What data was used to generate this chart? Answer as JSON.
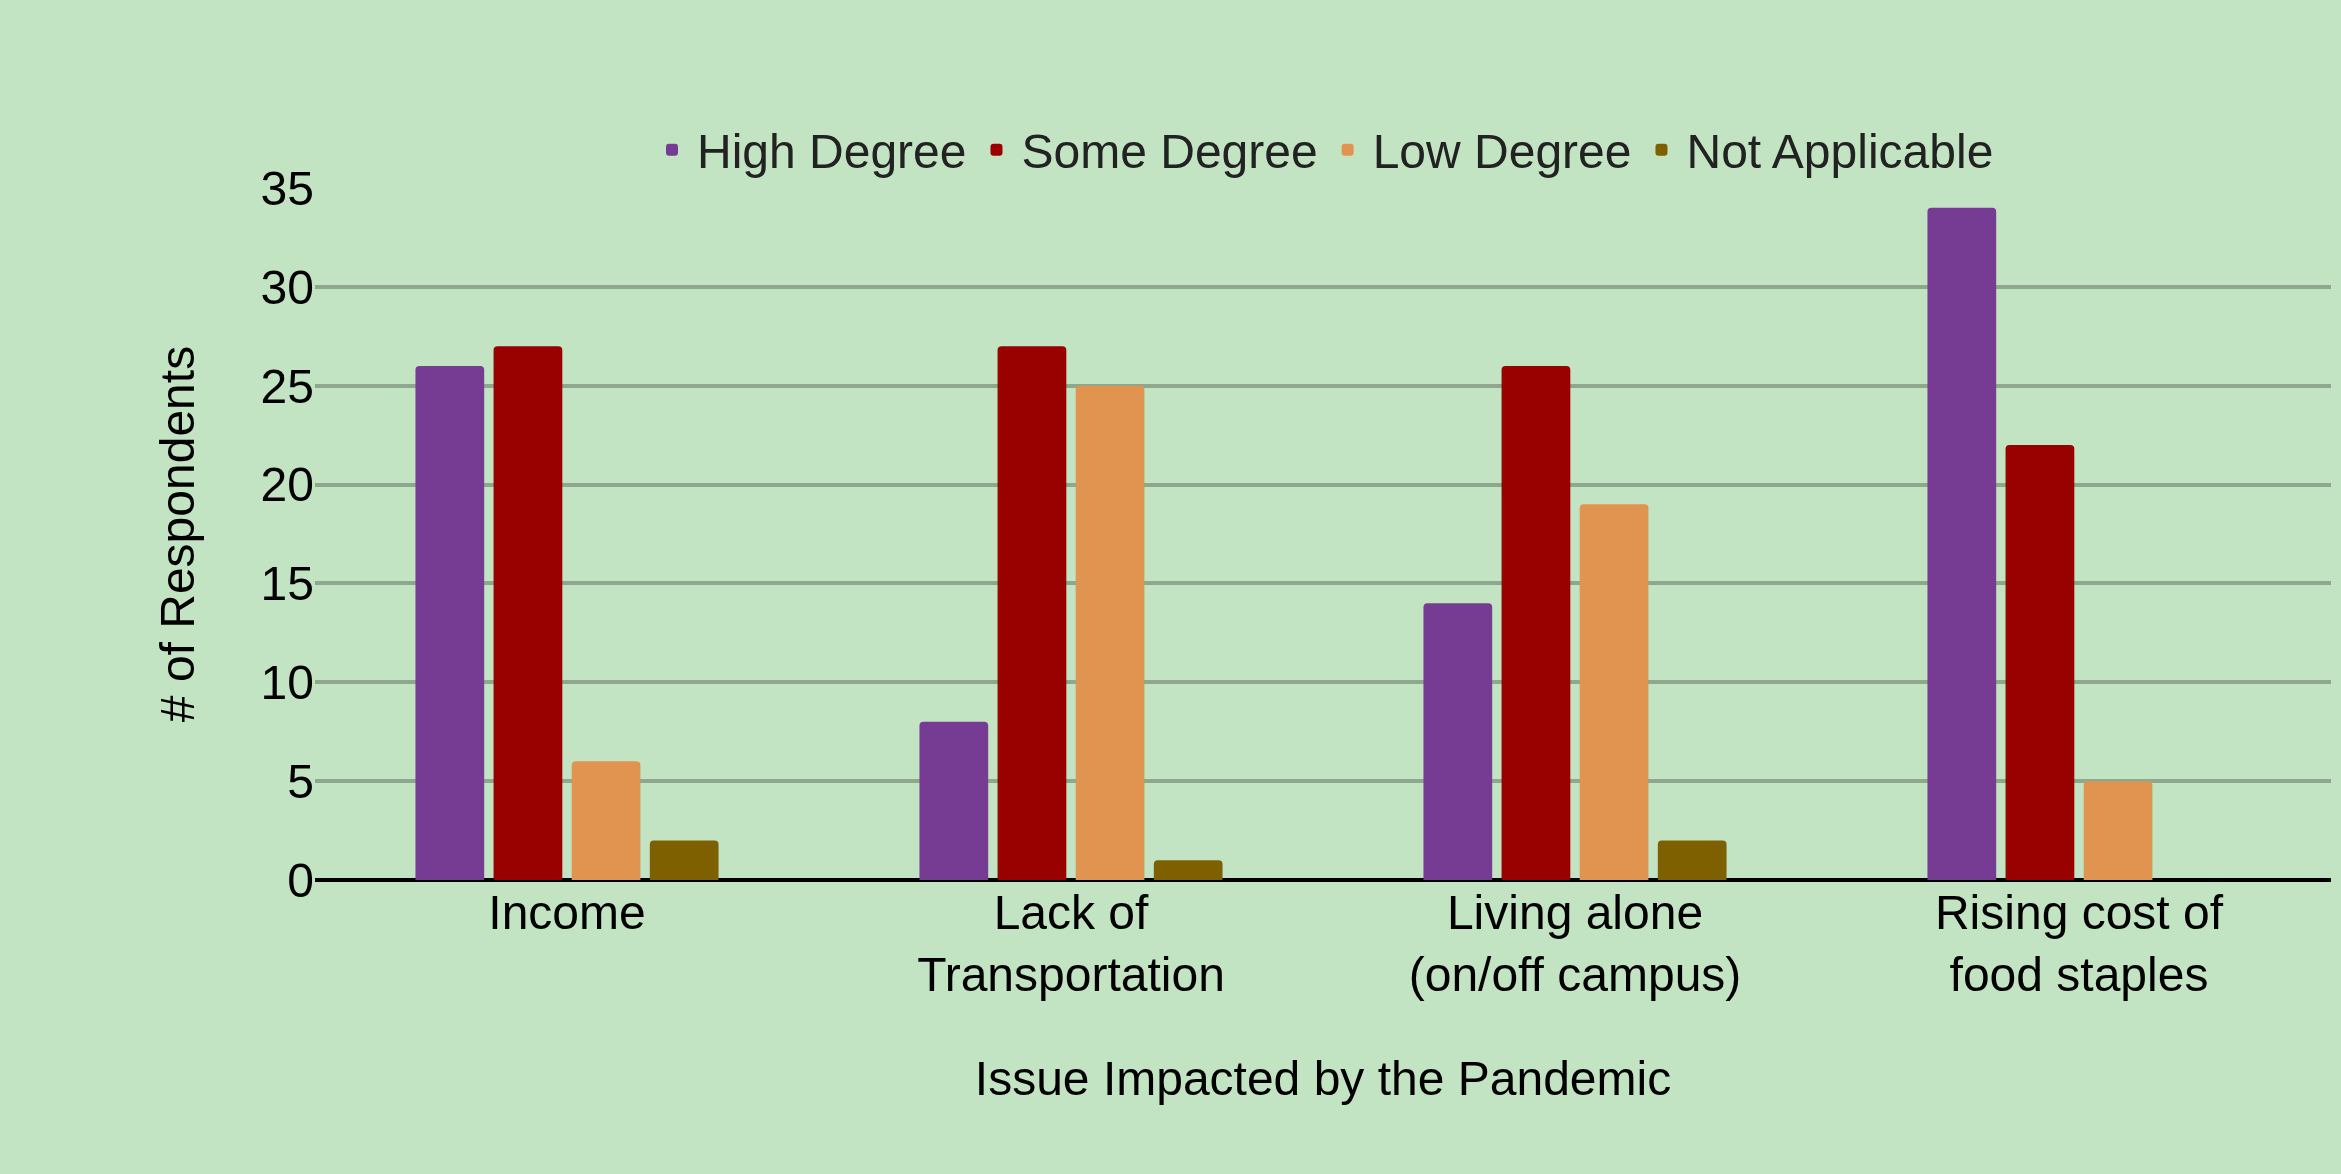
{
  "chart_data": {
    "type": "bar",
    "xlabel": "Issue Impacted by the Pandemic",
    "ylabel": "# of Respondents",
    "categories": [
      "Income",
      "Lack of\nTransportation",
      "Living alone\n(on/off campus)",
      "Rising cost of\nfood staples"
    ],
    "series": [
      {
        "name": "High Degree",
        "color": "#763c93",
        "values": [
          26,
          8,
          14,
          34
        ]
      },
      {
        "name": "Some Degree",
        "color": "#990000",
        "values": [
          27,
          27,
          26,
          22
        ]
      },
      {
        "name": "Low Degree",
        "color": "#e0944f",
        "values": [
          6,
          25,
          19,
          5
        ]
      },
      {
        "name": "Not Applicable",
        "color": "#7f6000",
        "values": [
          2,
          1,
          2,
          0
        ]
      }
    ],
    "ylim": [
      0,
      35
    ],
    "yticks": [
      0,
      5,
      10,
      15,
      20,
      25,
      30,
      35
    ],
    "grid": "y",
    "legend": "top"
  }
}
